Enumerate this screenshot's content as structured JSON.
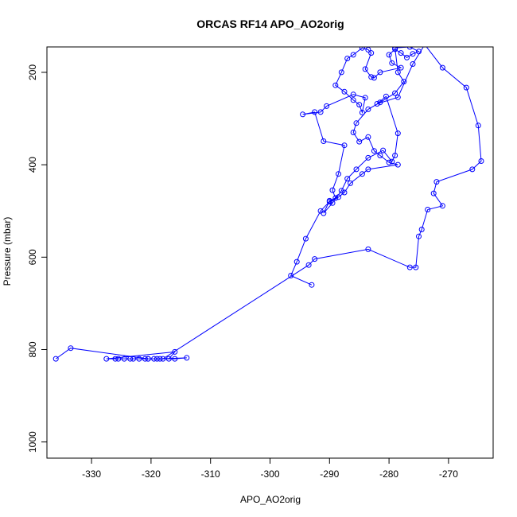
{
  "chart_data": {
    "type": "line",
    "title": "ORCAS RF14 APO_AO2orig",
    "xlabel": "APO_AO2orig",
    "ylabel": "Pressure (mbar)",
    "xlim": [
      -337.5,
      -262.5
    ],
    "ylim": [
      1035,
      145
    ],
    "y_inverted": true,
    "x_ticks": [
      -330,
      -320,
      -310,
      -300,
      -290,
      -280,
      -270
    ],
    "y_ticks": [
      200,
      400,
      600,
      800,
      1000
    ],
    "grid": false,
    "legend": "none",
    "marker": "open-circle",
    "color": "#0000ff",
    "series": [
      {
        "x": [
          -336,
          -333.5,
          -320.5,
          -316,
          -314,
          -318.5,
          -319,
          -319.5,
          -320.5,
          -321,
          -322,
          -323,
          -323.5,
          -324.5,
          -325.5,
          -326,
          -327.5,
          -316,
          -317,
          -318,
          -293.5,
          -292.5,
          -283.5,
          -276.5,
          -275.5,
          -275,
          -274.5,
          -273.5,
          -271,
          -272.5,
          -272,
          -266,
          -264.5,
          -265,
          -267,
          -271,
          -274,
          -276,
          -278.5,
          -282,
          -280.5,
          -278.5,
          -279,
          -279.5,
          -281,
          -283.5,
          -285.5,
          -287,
          -288,
          -289.5,
          -291,
          -290,
          -289,
          -289.5,
          -288.5,
          -287.5,
          -291,
          -292.5,
          -294.5,
          -291.5,
          -290.5,
          -286,
          -284,
          -284.5,
          -285,
          -286,
          -287.5,
          -289,
          -288,
          -287,
          -286,
          -284.5,
          -283.5,
          -283,
          -284,
          -283,
          -282.5,
          -281.5,
          -278,
          -279.5,
          -280,
          -279,
          -278,
          -277,
          -276,
          -275,
          -276.5,
          -279,
          -278.5,
          -277.5,
          -279,
          -281.5,
          -283.5,
          -285.5,
          -286,
          -285,
          -283.5,
          -282.5,
          -281.5,
          -280,
          -278.5,
          -283.5,
          -284.5,
          -286.5,
          -287.5,
          -288.5,
          -290,
          -291.5,
          -294,
          -295.5,
          -296.5,
          -293
        ],
        "y": [
          820,
          797,
          820,
          820,
          818,
          820,
          820,
          820,
          820,
          820,
          820,
          820,
          820,
          820,
          820,
          820,
          820,
          805,
          820,
          820,
          617,
          604,
          583,
          622,
          622,
          555,
          540,
          497,
          489,
          462,
          437,
          410,
          392,
          315,
          233,
          190,
          140,
          182,
          254,
          268,
          252,
          332,
          380,
          393,
          369,
          385,
          410,
          430,
          456,
          483,
          505,
          478,
          472,
          455,
          420,
          358,
          349,
          286,
          291,
          286,
          273,
          248,
          255,
          287,
          270,
          260,
          242,
          228,
          200,
          170,
          162,
          147,
          151,
          158,
          193,
          210,
          212,
          200,
          190,
          180,
          162,
          150,
          158,
          168,
          160,
          155,
          145,
          147,
          200,
          220,
          245,
          265,
          280,
          310,
          330,
          350,
          340,
          370,
          380,
          395,
          400,
          410,
          420,
          440,
          460,
          470,
          480,
          500,
          560,
          610,
          640,
          660
        ]
      }
    ]
  }
}
